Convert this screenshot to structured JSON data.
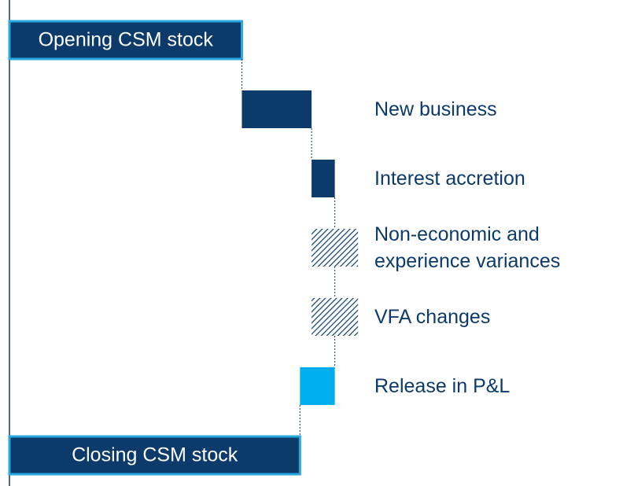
{
  "chart_data": {
    "type": "waterfall",
    "categories": [
      "Opening CSM stock",
      "New business",
      "Interest accretion",
      "Non-economic and experience variances",
      "VFA changes",
      "Release in P&L",
      "Closing CSM stock"
    ],
    "values": [
      100,
      30,
      10,
      0,
      0,
      -15,
      125
    ],
    "errors": [
      null,
      null,
      null,
      10,
      10,
      null,
      null
    ],
    "totals": [
      true,
      false,
      false,
      false,
      false,
      false,
      true
    ],
    "colors": [
      "#0b3a6b",
      "#0b3a6b",
      "#0b3a6b",
      "hatch",
      "hatch",
      "#00aeef",
      "#0b3a6b"
    ],
    "border_color": "#29a8e0",
    "xlim": [
      0,
      264
    ]
  }
}
